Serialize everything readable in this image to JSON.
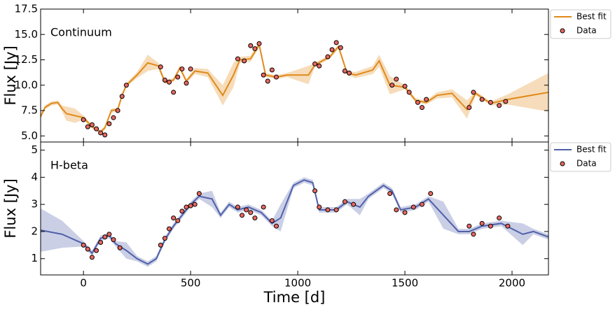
{
  "chart_data": [
    {
      "type": "line",
      "title": "Continuum",
      "ylabel": "Flux [Jy]",
      "xlim": [
        -200,
        2170
      ],
      "ylim": [
        4.4,
        17.5
      ],
      "xticks": [
        0,
        500,
        1000,
        1500,
        2000
      ],
      "yticks": [
        {
          "value": 5.0,
          "label": "5.0"
        },
        7.5,
        {
          "value": 10.0,
          "label": "10.0"
        },
        12.5,
        {
          "value": 15.0,
          "label": "15.0"
        },
        17.5
      ],
      "legend": "outside-upper-right",
      "series": [
        {
          "name": "Best fit",
          "color": "#e08a1a",
          "x": [
            -200,
            -180,
            -150,
            -120,
            -100,
            -80,
            -40,
            0,
            40,
            80,
            100,
            130,
            160,
            180,
            200,
            250,
            300,
            350,
            380,
            420,
            450,
            480,
            520,
            580,
            650,
            700,
            730,
            780,
            820,
            850,
            900,
            950,
            1050,
            1080,
            1150,
            1190,
            1230,
            1270,
            1350,
            1380,
            1430,
            1500,
            1550,
            1600,
            1650,
            1720,
            1790,
            1830,
            1900,
            1980,
            2170
          ],
          "values": [
            6.9,
            7.8,
            8.2,
            8.3,
            7.7,
            7.2,
            7.0,
            6.8,
            5.9,
            5.4,
            5.8,
            7.5,
            7.6,
            9.0,
            10.0,
            11.0,
            12.2,
            11.9,
            10.3,
            10.5,
            11.7,
            10.4,
            11.4,
            11.2,
            9.0,
            11.0,
            12.5,
            12.6,
            14.0,
            11.0,
            10.8,
            11.0,
            11.0,
            12.0,
            12.8,
            13.8,
            11.2,
            11.0,
            11.5,
            12.4,
            10.0,
            9.8,
            8.5,
            8.3,
            9.0,
            9.2,
            7.6,
            9.2,
            8.2,
            8.6,
            9.3
          ],
          "errors": [
            0.2,
            0.2,
            0.2,
            0.2,
            0.3,
            0.7,
            0.7,
            0.2,
            0.2,
            0.2,
            0.2,
            0.2,
            0.2,
            0.2,
            0.2,
            0.3,
            0.8,
            0.3,
            0.2,
            0.2,
            0.2,
            0.2,
            0.3,
            0.4,
            1.0,
            1.2,
            0.3,
            0.3,
            0.3,
            0.2,
            0.2,
            0.2,
            0.9,
            0.2,
            0.2,
            0.2,
            0.2,
            0.3,
            0.4,
            0.6,
            0.9,
            0.2,
            0.2,
            0.2,
            0.3,
            0.4,
            0.9,
            0.2,
            0.2,
            0.5,
            1.9
          ]
        },
        {
          "name": "Data",
          "color": "#e8675f",
          "x": [
            0,
            20,
            40,
            60,
            80,
            100,
            120,
            140,
            160,
            180,
            200,
            360,
            380,
            400,
            420,
            440,
            460,
            480,
            500,
            720,
            750,
            780,
            800,
            820,
            840,
            860,
            880,
            900,
            1080,
            1100,
            1140,
            1160,
            1180,
            1200,
            1220,
            1240,
            1440,
            1460,
            1500,
            1520,
            1560,
            1580,
            1600,
            1800,
            1820,
            1860,
            1900,
            1940,
            1970
          ],
          "values": [
            6.6,
            5.9,
            6.1,
            5.7,
            5.3,
            5.1,
            6.2,
            6.8,
            7.5,
            8.9,
            10.0,
            11.8,
            10.5,
            10.3,
            9.3,
            10.8,
            11.6,
            10.2,
            11.6,
            12.6,
            12.4,
            13.9,
            13.6,
            14.1,
            11.0,
            10.4,
            11.5,
            10.8,
            12.1,
            11.9,
            12.8,
            13.5,
            14.2,
            13.7,
            11.4,
            11.2,
            10.0,
            10.6,
            9.9,
            9.3,
            8.3,
            7.8,
            8.6,
            7.8,
            9.3,
            8.6,
            8.3,
            8.0,
            8.4
          ]
        }
      ]
    },
    {
      "type": "line",
      "title": "H-beta",
      "ylabel": "Flux [Jy]",
      "xlabel": "Time [d]",
      "xlim": [
        -200,
        2170
      ],
      "ylim": [
        0.4,
        5.3
      ],
      "xticks": [
        0,
        500,
        1000,
        1500,
        2000
      ],
      "yticks": [
        1,
        2,
        3,
        4,
        5
      ],
      "legend": "outside-upper-right",
      "series": [
        {
          "name": "Best fit",
          "color": "#5060aa",
          "x": [
            -200,
            -100,
            0,
            40,
            80,
            120,
            150,
            200,
            250,
            300,
            340,
            380,
            420,
            460,
            500,
            540,
            600,
            640,
            680,
            720,
            770,
            830,
            880,
            920,
            980,
            1030,
            1070,
            1100,
            1180,
            1230,
            1290,
            1330,
            1400,
            1440,
            1480,
            1550,
            1610,
            1680,
            1750,
            1800,
            1860,
            1950,
            2050,
            2100,
            2170
          ],
          "values": [
            2.05,
            1.9,
            1.55,
            1.2,
            1.75,
            1.85,
            1.55,
            1.3,
            1.0,
            0.8,
            1.0,
            1.7,
            2.2,
            2.6,
            3.0,
            3.3,
            3.2,
            2.6,
            3.0,
            2.8,
            2.9,
            2.7,
            2.3,
            2.5,
            3.7,
            3.9,
            3.8,
            2.8,
            2.8,
            3.1,
            2.9,
            3.3,
            3.7,
            3.5,
            2.8,
            2.9,
            3.2,
            2.6,
            2.0,
            2.0,
            2.2,
            2.3,
            1.9,
            2.0,
            1.8
          ],
          "errors": [
            0.8,
            0.5,
            0.1,
            0.1,
            0.1,
            0.1,
            0.1,
            0.3,
            0.1,
            0.1,
            0.1,
            0.1,
            0.1,
            0.1,
            0.1,
            0.1,
            0.3,
            0.1,
            0.1,
            0.1,
            0.1,
            0.1,
            0.1,
            0.5,
            0.1,
            0.1,
            0.1,
            0.1,
            0.1,
            0.1,
            0.3,
            0.1,
            0.1,
            0.1,
            0.1,
            0.1,
            0.1,
            0.5,
            0.1,
            0.1,
            0.1,
            0.1,
            0.4,
            0.1,
            0.1
          ]
        },
        {
          "name": "Data",
          "color": "#e8675f",
          "x": [
            0,
            20,
            40,
            60,
            80,
            100,
            120,
            140,
            170,
            360,
            380,
            400,
            420,
            440,
            460,
            480,
            500,
            520,
            540,
            720,
            740,
            760,
            780,
            800,
            840,
            880,
            900,
            1080,
            1100,
            1140,
            1180,
            1220,
            1260,
            1430,
            1460,
            1500,
            1540,
            1580,
            1620,
            1800,
            1820,
            1860,
            1900,
            1940,
            1980
          ],
          "values": [
            1.5,
            1.35,
            1.05,
            1.3,
            1.6,
            1.8,
            1.9,
            1.7,
            1.4,
            1.5,
            1.75,
            2.1,
            2.5,
            2.4,
            2.75,
            2.9,
            2.95,
            3.0,
            3.4,
            2.9,
            2.6,
            2.8,
            2.7,
            2.5,
            2.9,
            2.4,
            2.2,
            3.5,
            2.9,
            2.8,
            2.8,
            3.1,
            3.0,
            3.4,
            2.8,
            2.7,
            2.9,
            3.0,
            3.4,
            2.2,
            1.9,
            2.3,
            2.2,
            2.5,
            2.2
          ]
        }
      ]
    }
  ]
}
